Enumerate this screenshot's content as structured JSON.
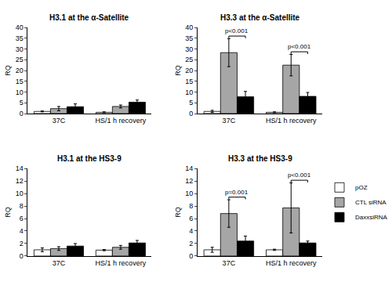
{
  "chart_data": [
    {
      "type": "bar",
      "title": "H3.1 at the α-Satellite",
      "y_label": "RQ",
      "categories": [
        "37C",
        "HS/1 h recovery"
      ],
      "series": [
        {
          "name": "pOZ",
          "color": "#ffffff",
          "values": [
            1.0,
            0.6
          ],
          "errors": [
            0.2,
            0.2
          ]
        },
        {
          "name": "CTL siRNA",
          "color": "#a6a6a6",
          "values": [
            2.3,
            3.3
          ],
          "errors": [
            1.0,
            0.7
          ]
        },
        {
          "name": "DaxxsiRNA",
          "color": "#000000",
          "values": [
            3.2,
            5.3
          ],
          "errors": [
            1.3,
            1.0
          ]
        }
      ],
      "ylim": [
        0,
        40
      ],
      "yticks": [
        0,
        5,
        10,
        15,
        20,
        25,
        30,
        35,
        40
      ],
      "grid": false
    },
    {
      "type": "bar",
      "title": "H3.3 at the α-Satellite",
      "y_label": "RQ",
      "categories": [
        "37C",
        "HS/1 h recovery"
      ],
      "series": [
        {
          "name": "pOZ",
          "color": "#ffffff",
          "values": [
            1.0,
            0.6
          ],
          "errors": [
            0.5,
            0.2
          ]
        },
        {
          "name": "CTL siRNA",
          "color": "#a6a6a6",
          "values": [
            28.3,
            22.5
          ],
          "errors": [
            6.5,
            5.0
          ]
        },
        {
          "name": "DaxxsiRNA",
          "color": "#000000",
          "values": [
            7.8,
            8.0
          ],
          "errors": [
            2.5,
            1.8
          ]
        }
      ],
      "annotations": [
        {
          "text": "p<0.001",
          "category": "37C"
        },
        {
          "text": "p<0.001",
          "category": "HS/1 h recovery"
        }
      ],
      "ylim": [
        0,
        40
      ],
      "yticks": [
        0,
        5,
        10,
        15,
        20,
        25,
        30,
        35,
        40
      ],
      "grid": false
    },
    {
      "type": "bar",
      "title": "H3.1 at the HS3-9",
      "y_label": "RQ",
      "categories": [
        "37C",
        "HS/1 h recovery"
      ],
      "series": [
        {
          "name": "pOZ",
          "color": "#ffffff",
          "values": [
            1.0,
            0.95
          ],
          "errors": [
            0.3,
            0.1
          ]
        },
        {
          "name": "CTL siRNA",
          "color": "#a6a6a6",
          "values": [
            1.2,
            1.4
          ],
          "errors": [
            0.3,
            0.3
          ]
        },
        {
          "name": "DaxxsiRNA",
          "color": "#000000",
          "values": [
            1.6,
            2.1
          ],
          "errors": [
            0.4,
            0.4
          ]
        }
      ],
      "ylim": [
        0,
        14
      ],
      "yticks": [
        0,
        2,
        4,
        6,
        8,
        10,
        12,
        14
      ],
      "grid": false
    },
    {
      "type": "bar",
      "title": "H3.3 at the HS3-9",
      "y_label": "RQ",
      "categories": [
        "37C",
        "HS/1 h recovery"
      ],
      "series": [
        {
          "name": "pOZ",
          "color": "#ffffff",
          "values": [
            1.0,
            1.0
          ],
          "errors": [
            0.4,
            0.1
          ]
        },
        {
          "name": "CTL siRNA",
          "color": "#a6a6a6",
          "values": [
            6.8,
            7.7
          ],
          "errors": [
            2.2,
            4.0
          ]
        },
        {
          "name": "DaxxsiRNA",
          "color": "#000000",
          "values": [
            2.4,
            2.1
          ],
          "errors": [
            0.8,
            0.3
          ]
        }
      ],
      "annotations": [
        {
          "text": "p=0.001",
          "category": "37C"
        },
        {
          "text": "p<0.001",
          "category": "HS/1 h recovery"
        }
      ],
      "ylim": [
        0,
        14
      ],
      "yticks": [
        0,
        2,
        4,
        6,
        8,
        10,
        12,
        14
      ],
      "grid": false,
      "legend": "right"
    }
  ]
}
